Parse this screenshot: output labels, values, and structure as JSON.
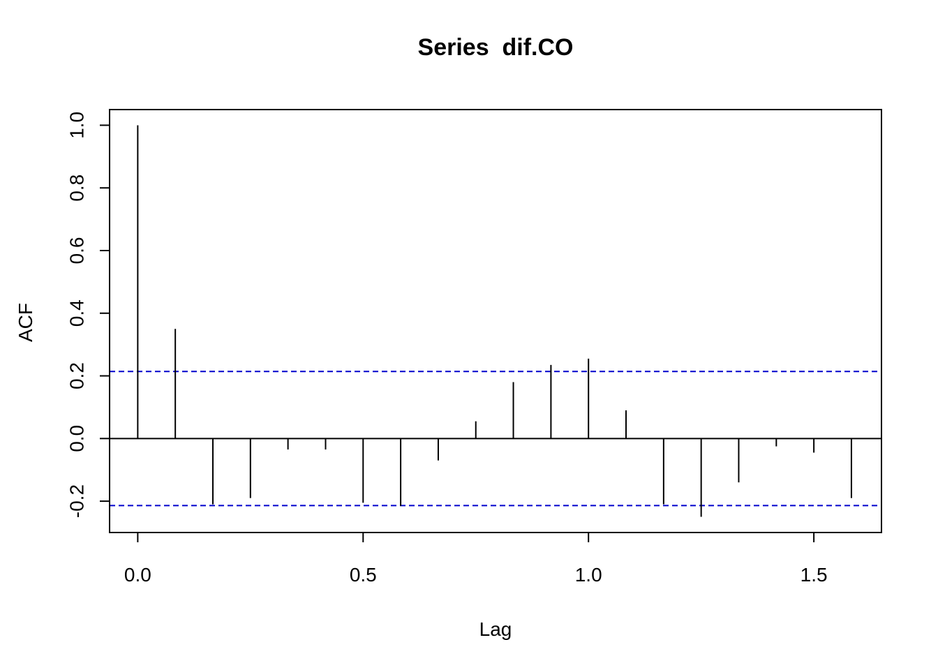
{
  "chart_data": {
    "type": "bar",
    "title": "Series  dif.CO",
    "xlabel": "Lag",
    "ylabel": "ACF",
    "xlim": [
      -0.0625,
      1.65
    ],
    "ylim": [
      -0.3,
      1.05
    ],
    "xticks": [
      0.0,
      0.5,
      1.0,
      1.5
    ],
    "xtick_labels": [
      "0.0",
      "0.5",
      "1.0",
      "1.5"
    ],
    "yticks": [
      -0.2,
      0.0,
      0.2,
      0.4,
      0.6,
      0.8,
      1.0
    ],
    "ytick_labels": [
      "-0.2",
      "0.0",
      "0.2",
      "0.4",
      "0.6",
      "0.8",
      "1.0"
    ],
    "x": [
      0.0,
      0.0833,
      0.1667,
      0.25,
      0.3333,
      0.4167,
      0.5,
      0.5833,
      0.6667,
      0.75,
      0.8333,
      0.9167,
      1.0,
      1.0833,
      1.1667,
      1.25,
      1.3333,
      1.4167,
      1.5,
      1.5833
    ],
    "values": [
      1.0,
      0.35,
      -0.21,
      -0.19,
      -0.035,
      -0.035,
      -0.205,
      -0.215,
      -0.07,
      0.055,
      0.18,
      0.235,
      0.255,
      0.09,
      -0.21,
      -0.25,
      -0.14,
      -0.025,
      -0.045,
      -0.19
    ],
    "confidence_limit": 0.214,
    "confidence_line_color": "#0000cc",
    "bar_color": "#000000",
    "grid": false,
    "legend": "none"
  }
}
